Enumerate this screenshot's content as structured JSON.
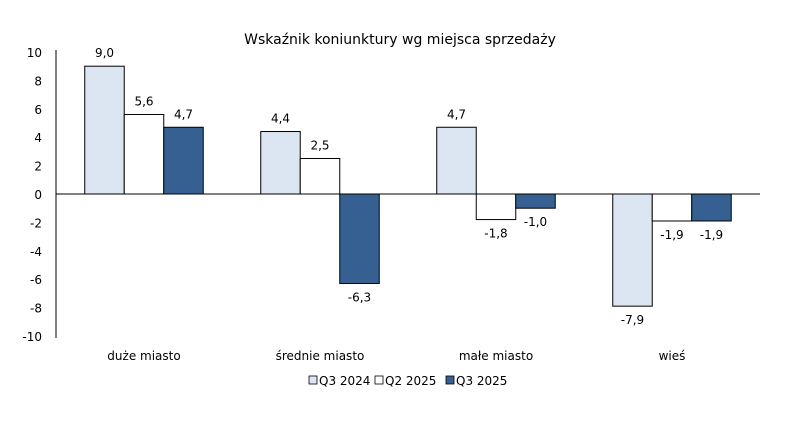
{
  "chart_data": {
    "type": "bar",
    "title": "Wskaźnik koniunktury wg miejsca sprzedaży",
    "xlabel": "",
    "ylabel": "",
    "ylim": [
      -10,
      10
    ],
    "yticks": [
      10,
      8,
      6,
      4,
      2,
      0,
      -2,
      -4,
      -6,
      -8,
      -10
    ],
    "grid": false,
    "legend_position": "bottom",
    "categories": [
      "duże miasto",
      "średnie miasto",
      "małe miasto",
      "wieś"
    ],
    "series": [
      {
        "name": "Q3 2024",
        "values": [
          9.0,
          4.4,
          4.7,
          -7.9
        ],
        "labels": [
          "9,0",
          "4,4",
          "4,7",
          "-7,9"
        ],
        "color": "#dce6f2"
      },
      {
        "name": "Q2 2025",
        "values": [
          5.6,
          2.5,
          -1.8,
          -1.9
        ],
        "labels": [
          "5,6",
          "2,5",
          "-1,8",
          "-1,9"
        ],
        "color": "#ffffff"
      },
      {
        "name": "Q3 2025",
        "values": [
          4.7,
          -6.3,
          -1.0,
          -1.9
        ],
        "labels": [
          "4,7",
          "-6,3",
          "-1,0",
          "-1,9"
        ],
        "color": "#376092"
      }
    ]
  }
}
